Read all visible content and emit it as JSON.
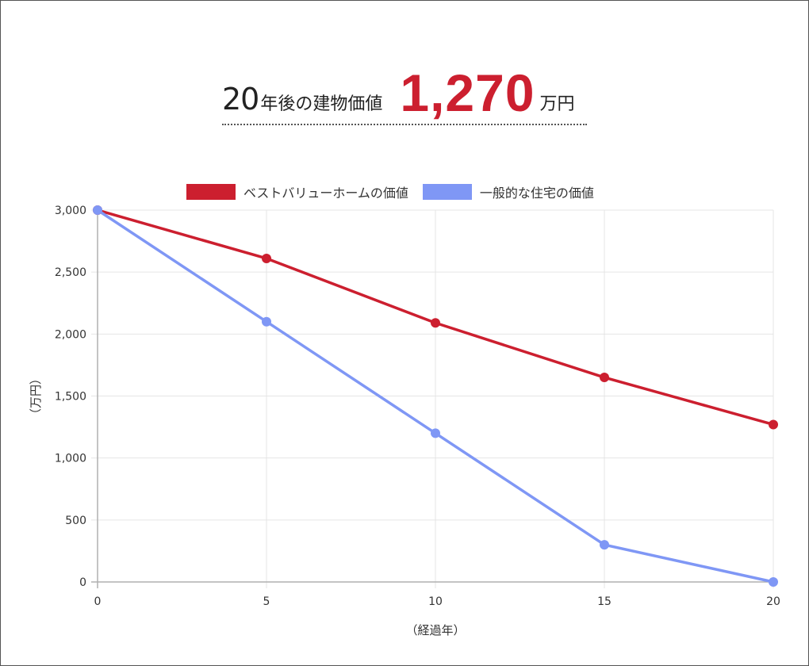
{
  "headline": {
    "prefix_number": "20",
    "prefix_text": "年後の建物価値",
    "value": "1,270",
    "unit": "万円"
  },
  "colors": {
    "best_value_home": "#cc1f2f",
    "general_home": "#7f97f5",
    "grid": "#e5e5e5",
    "axis": "#b0b0b0",
    "headline_value": "#cc1f2f"
  },
  "legend": [
    {
      "label": "ベストバリューホームの価値",
      "color": "#cc1f2f"
    },
    {
      "label": "一般的な住宅の価値",
      "color": "#7f97f5"
    }
  ],
  "chart_data": {
    "type": "line",
    "title": "20年後の建物価値 1,270万円",
    "xlabel": "（経過年）",
    "ylabel": "（万円）",
    "x": [
      0,
      5,
      10,
      15,
      20
    ],
    "x_ticks": [
      "0",
      "5",
      "10",
      "15",
      "20"
    ],
    "y_ticks": [
      "0",
      "500",
      "1,000",
      "1,500",
      "2,000",
      "2,500",
      "3,000"
    ],
    "ylim": [
      0,
      3000
    ],
    "xlim": [
      0,
      20
    ],
    "grid": true,
    "legend_position": "top",
    "series": [
      {
        "name": "ベストバリューホームの価値",
        "values": [
          3000,
          2610,
          2090,
          1650,
          1270
        ],
        "color": "#cc1f2f"
      },
      {
        "name": "一般的な住宅の価値",
        "values": [
          3000,
          2100,
          1200,
          300,
          0
        ],
        "color": "#7f97f5"
      }
    ]
  }
}
